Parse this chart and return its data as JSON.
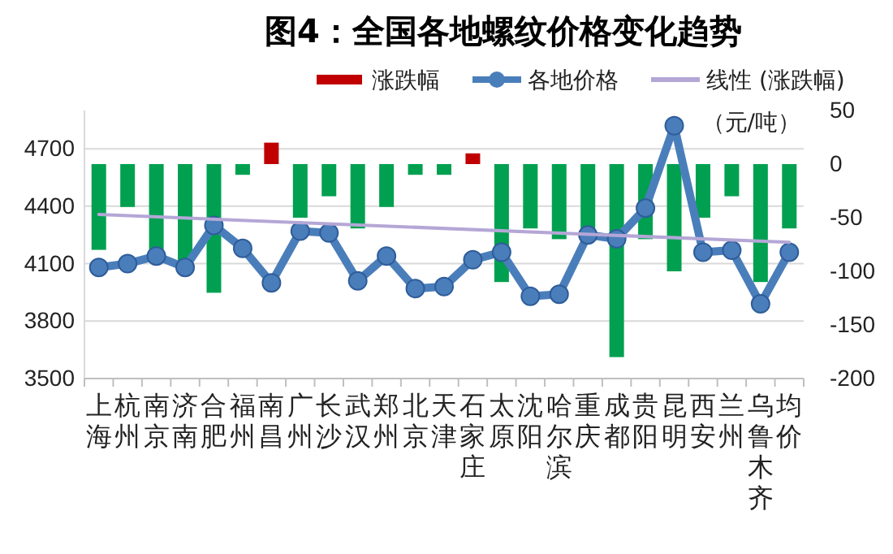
{
  "chart_data": {
    "type": "bar",
    "title": "图4：全国各地螺纹价格变化趋势",
    "categories": [
      "上海",
      "杭州",
      "南京",
      "济南",
      "合肥",
      "福州",
      "南昌",
      "广州",
      "长沙",
      "武汉",
      "郑州",
      "北京",
      "天津",
      "石家庄",
      "太原",
      "沈阳",
      "哈尔滨",
      "重庆",
      "成都",
      "贵阳",
      "昆明",
      "西安",
      "兰州",
      "乌鲁木齐",
      "均价"
    ],
    "series": [
      {
        "name": "涨跌幅",
        "axis": "y2",
        "color": "#c00000",
        "colors": [
          "#00a050",
          "#00a050",
          "#00a050",
          "#00a050",
          "#00a050",
          "#00a050",
          "#c00000",
          "#00a050",
          "#00a050",
          "#00a050",
          "#00a050",
          "#00a050",
          "#00a050",
          "#c00000",
          "#00a050",
          "#00a050",
          "#00a050",
          "#00a050",
          "#00a050",
          "#00a050",
          "#00a050",
          "#00a050",
          "#00a050",
          "#00a050",
          "#00a050"
        ],
        "values": [
          -80,
          -40,
          -80,
          -90,
          -120,
          -10,
          20,
          -50,
          -30,
          -60,
          -40,
          -10,
          -10,
          10,
          -110,
          -60,
          -70,
          -60,
          -180,
          -70,
          -100,
          -50,
          -30,
          -110,
          -60
        ]
      },
      {
        "name": "各地价格",
        "type": "line",
        "color": "#4a7ebb",
        "marker": "circle",
        "values": [
          4080,
          4100,
          4140,
          4080,
          4300,
          4180,
          4000,
          4270,
          4260,
          4010,
          4140,
          3970,
          3980,
          4120,
          4160,
          3930,
          3940,
          4250,
          4230,
          4390,
          4820,
          4160,
          4170,
          3890,
          4160
        ]
      },
      {
        "name": "线性 (涨跌幅)",
        "type": "line",
        "axis": "y2",
        "color": "#b4a7d6",
        "marker": "none",
        "x": [
          "上海",
          "均价"
        ],
        "values": [
          -47,
          -73
        ]
      }
    ],
    "ylim": [
      3500,
      4900
    ],
    "yticks": [
      3500,
      3800,
      4100,
      4400,
      4700
    ],
    "y2lim": [
      -200,
      50
    ],
    "y2ticks": [
      -200,
      -150,
      -100,
      -50,
      0,
      50
    ],
    "grid": "y",
    "legend": "top",
    "annotations": [
      "（元/吨）"
    ]
  }
}
